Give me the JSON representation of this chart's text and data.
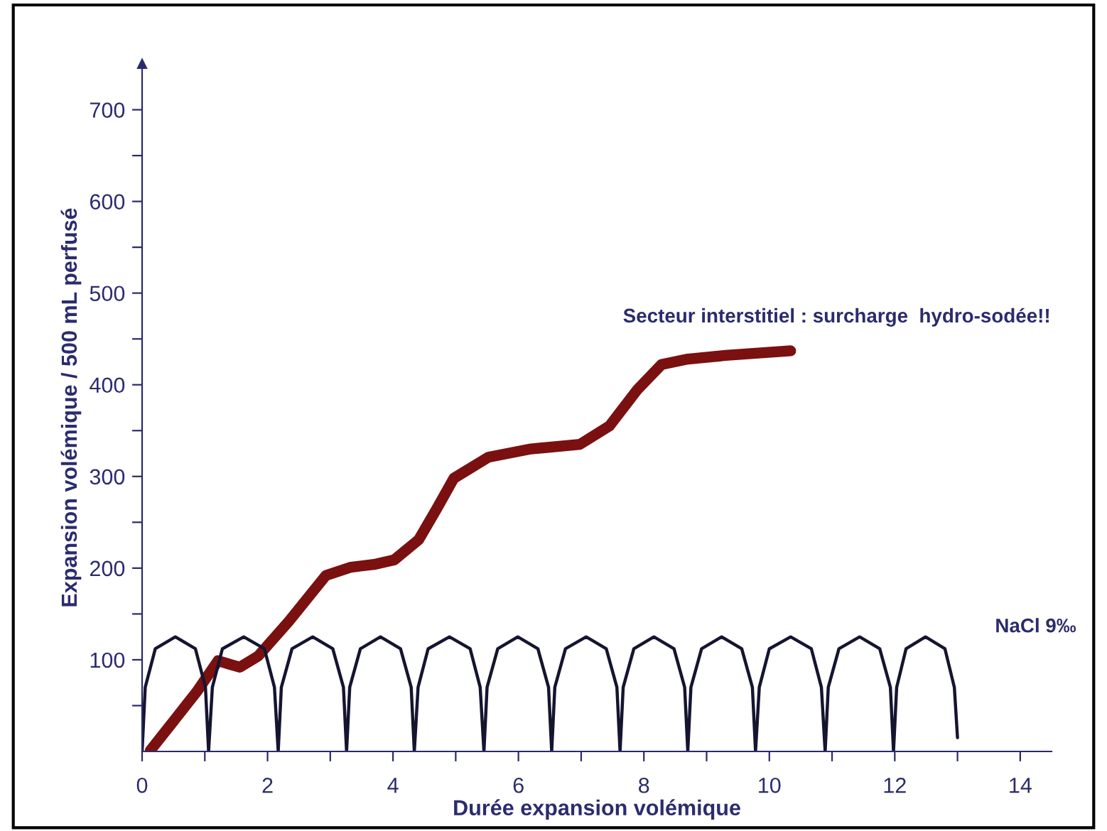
{
  "chart_data": {
    "type": "line",
    "xlabel": "Durée expansion volémique",
    "ylabel": "Expansion volémique / 500 mL perfusé",
    "xlim": [
      0,
      14.5
    ],
    "ylim": [
      0,
      750
    ],
    "xticks": [
      0,
      {
        "value": 1,
        "label": null
      },
      2,
      {
        "value": 3,
        "label": null
      },
      4,
      {
        "value": 5,
        "label": null
      },
      6,
      {
        "value": 7,
        "label": null
      },
      8,
      {
        "value": 9,
        "label": null
      },
      10,
      {
        "value": 11,
        "label": null
      },
      12,
      {
        "value": 13,
        "label": null
      },
      14
    ],
    "yticks": [
      {
        "value": 50,
        "label": null
      },
      100,
      {
        "value": 150,
        "label": null
      },
      200,
      {
        "value": 250,
        "label": null
      },
      300,
      {
        "value": 350,
        "label": null
      },
      400,
      {
        "value": 450,
        "label": null
      },
      500,
      {
        "value": 550,
        "label": null
      },
      600,
      {
        "value": 650,
        "label": null
      },
      700
    ],
    "grid": false,
    "legend": false,
    "marker": "none",
    "line_style": "solid",
    "series": [
      {
        "name": "Secteur interstitiel : surcharge  hydro-sodée!!",
        "color": "#7b1010",
        "x": [
          0.13,
          0.5,
          0.87,
          1.21,
          1.4,
          1.56,
          1.85,
          2.34,
          2.93,
          3.33,
          3.7,
          4.02,
          4.41,
          4.7,
          4.97,
          5.52,
          6.2,
          6.98,
          7.45,
          7.9,
          8.28,
          8.7,
          9.3,
          10.34
        ],
        "values": [
          1,
          33,
          65,
          99,
          95,
          92,
          104,
          142,
          192,
          201,
          204,
          209,
          231,
          265,
          298,
          321,
          330,
          335,
          355,
          395,
          422,
          428,
          432,
          437
        ]
      },
      {
        "name": "NaCl 9‰",
        "color": "#151530",
        "x": [
          0,
          0.05,
          0.21,
          0.53,
          0.85,
          1.01,
          1.06,
          1.12,
          1.28,
          1.62,
          1.95,
          2.11,
          2.17,
          2.22,
          2.39,
          2.72,
          3.04,
          3.21,
          3.26,
          3.31,
          3.48,
          3.8,
          4.12,
          4.29,
          4.34,
          4.4,
          4.56,
          4.9,
          5.23,
          5.39,
          5.45,
          5.5,
          5.67,
          5.99,
          6.31,
          6.48,
          6.53,
          6.58,
          6.75,
          7.08,
          7.4,
          7.57,
          7.62,
          7.67,
          7.84,
          8.16,
          8.48,
          8.65,
          8.7,
          8.75,
          8.92,
          9.24,
          9.56,
          9.73,
          9.78,
          9.84,
          10.0,
          10.34,
          10.67,
          10.83,
          10.89,
          10.94,
          11.11,
          11.44,
          11.76,
          11.93,
          11.98,
          12.03,
          12.18,
          12.49,
          12.8,
          12.95,
          13.0
        ],
        "values": [
          0,
          70,
          112,
          125,
          112,
          70,
          0,
          70,
          112,
          125,
          112,
          70,
          0,
          70,
          112,
          125,
          112,
          70,
          0,
          70,
          112,
          125,
          112,
          70,
          0,
          70,
          112,
          125,
          112,
          70,
          0,
          70,
          112,
          125,
          112,
          70,
          0,
          70,
          112,
          125,
          112,
          70,
          0,
          70,
          112,
          125,
          112,
          70,
          0,
          70,
          112,
          125,
          112,
          70,
          0,
          70,
          112,
          125,
          112,
          70,
          0,
          70,
          112,
          125,
          112,
          70,
          0,
          70,
          112,
          125,
          112,
          70,
          15
        ]
      }
    ]
  }
}
